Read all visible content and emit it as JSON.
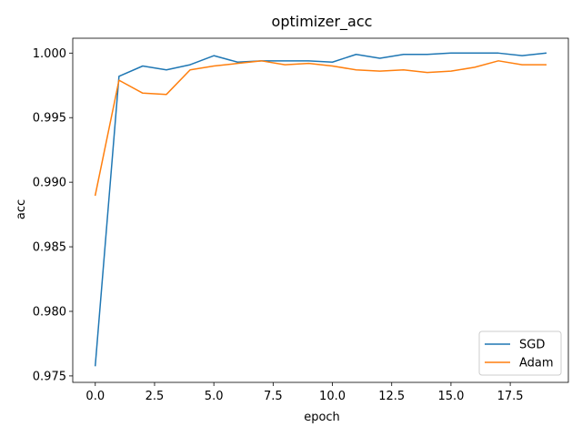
{
  "chart_data": {
    "type": "line",
    "title": "optimizer_acc",
    "xlabel": "epoch",
    "ylabel": "acc",
    "xlim": [
      -0.95,
      19.95
    ],
    "ylim": [
      0.9745,
      1.00115
    ],
    "x_ticks": [
      0.0,
      2.5,
      5.0,
      7.5,
      10.0,
      12.5,
      15.0,
      17.5
    ],
    "x_tick_labels": [
      "0.0",
      "2.5",
      "5.0",
      "7.5",
      "10.0",
      "12.5",
      "15.0",
      "17.5"
    ],
    "y_ticks": [
      0.975,
      0.98,
      0.985,
      0.99,
      0.995,
      1.0
    ],
    "y_tick_labels": [
      "0.975",
      "0.980",
      "0.985",
      "0.990",
      "0.995",
      "1.000"
    ],
    "grid": false,
    "legend_position": "lower-right",
    "x": [
      0,
      1,
      2,
      3,
      4,
      5,
      6,
      7,
      8,
      9,
      10,
      11,
      12,
      13,
      14,
      15,
      16,
      17,
      18,
      19
    ],
    "series": [
      {
        "name": "SGD",
        "color": "#1f77b4",
        "values": [
          0.9758,
          0.9982,
          0.999,
          0.9987,
          0.9991,
          0.9998,
          0.9993,
          0.9994,
          0.9994,
          0.9994,
          0.9993,
          0.9999,
          0.9996,
          0.9999,
          0.9999,
          1.0,
          1.0,
          1.0,
          0.9998,
          1.0
        ]
      },
      {
        "name": "Adam",
        "color": "#ff7f0e",
        "values": [
          0.989,
          0.9979,
          0.9969,
          0.9968,
          0.9987,
          0.999,
          0.9992,
          0.9994,
          0.9991,
          0.9992,
          0.999,
          0.9987,
          0.9986,
          0.9987,
          0.9985,
          0.9986,
          0.9989,
          0.9994,
          0.9991,
          0.9991
        ]
      }
    ]
  }
}
